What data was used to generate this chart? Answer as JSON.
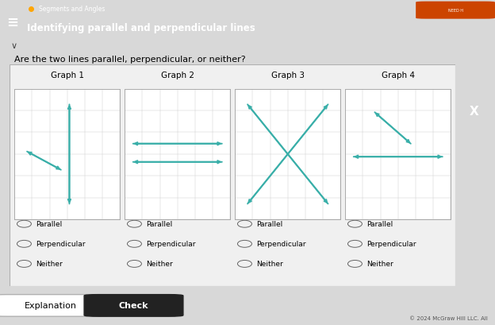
{
  "header_bg": "#3aafa9",
  "header_text1": "Segments and Angles",
  "header_text2": "Identifying parallel and perpendicular lines",
  "question": "Are the two lines parallel, perpendicular, or neither?",
  "graph_titles": [
    "Graph 1",
    "Graph 2",
    "Graph 3",
    "Graph 4"
  ],
  "line_color": "#3aafa9",
  "grid_color": "#d0d0d0",
  "graph_bg": "white",
  "radio_options": [
    "Parallel",
    "Perpendicular",
    "Neither"
  ],
  "footer_text": "© 2024 McGraw Hill LLC. All",
  "button_explanation": "Explanation",
  "button_check": "Check",
  "main_bg": "#d8d8d8",
  "content_bg": "#f0f0f0",
  "badge_color": "#cc4400",
  "graphs_data": [
    [
      [
        0.52,
        0.88,
        0.52,
        0.12
      ],
      [
        0.12,
        0.52,
        0.44,
        0.38
      ]
    ],
    [
      [
        0.08,
        0.58,
        0.92,
        0.58
      ],
      [
        0.08,
        0.44,
        0.92,
        0.44
      ]
    ],
    [
      [
        0.12,
        0.88,
        0.88,
        0.12
      ],
      [
        0.88,
        0.88,
        0.12,
        0.12
      ]
    ],
    [
      [
        0.28,
        0.82,
        0.62,
        0.58
      ],
      [
        0.08,
        0.48,
        0.92,
        0.48
      ]
    ]
  ]
}
